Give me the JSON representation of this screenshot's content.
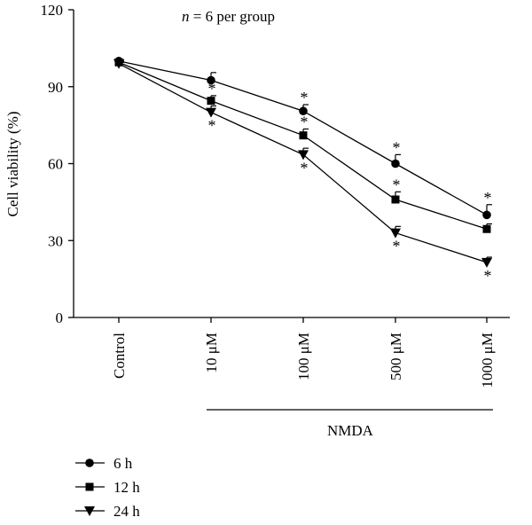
{
  "chart_data": {
    "type": "line",
    "annotation": {
      "n": "n",
      "rest": " = 6 per group"
    },
    "ylabel": "Cell viability (%)",
    "ylim": [
      0,
      120
    ],
    "yticks": [
      0,
      30,
      60,
      90,
      120
    ],
    "categories": [
      "Control",
      "10 μM",
      "100 μM",
      "500 μM",
      "1000 μM"
    ],
    "group_label": "NMDA",
    "significance_mark": "*",
    "series": [
      {
        "name": "6 h",
        "marker": "circle",
        "values": [
          100,
          92.5,
          80.5,
          60,
          40
        ],
        "errors": [
          0.5,
          3,
          2.5,
          3.5,
          4
        ],
        "stars": [
          false,
          false,
          true,
          true,
          true
        ]
      },
      {
        "name": "12 h",
        "marker": "square",
        "values": [
          99.5,
          84.5,
          71,
          46,
          34.5
        ],
        "errors": [
          0.5,
          2,
          2.5,
          3,
          2
        ],
        "stars": [
          false,
          true,
          true,
          true,
          true
        ]
      },
      {
        "name": "24 h",
        "marker": "triangle-down",
        "values": [
          99,
          80,
          63.5,
          33,
          21.5
        ],
        "errors": [
          0.5,
          2.5,
          2.5,
          2.5,
          2
        ],
        "stars": [
          false,
          true,
          true,
          true,
          true
        ]
      }
    ],
    "legend_position": "bottom-left"
  }
}
